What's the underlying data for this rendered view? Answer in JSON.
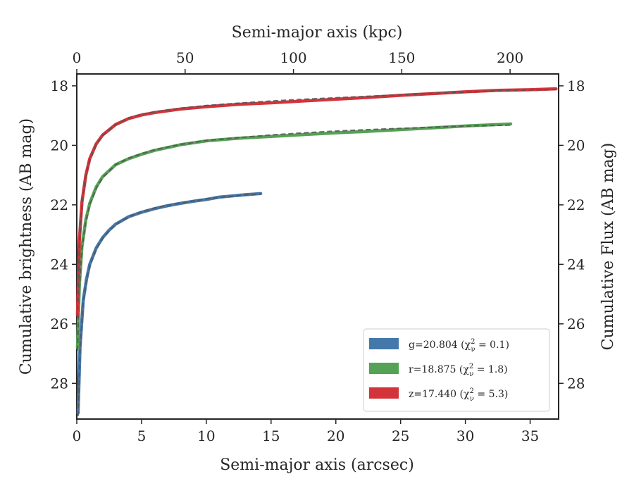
{
  "chart_data": {
    "type": "line",
    "title": "",
    "xlabel": "Semi-major axis (arcsec)",
    "ylabel": "Cumulative brightness (AB mag)",
    "x2label": "Semi-major axis (kpc)",
    "y2label": "Cumulative Flux (AB mag)",
    "xlim": [
      0,
      37.2
    ],
    "ylim": [
      29.2,
      17.6
    ],
    "y_inverted": true,
    "x2lim": [
      0,
      222.4
    ],
    "xticks": [
      "0",
      "5",
      "10",
      "15",
      "20",
      "25",
      "30",
      "35"
    ],
    "xtick_values": [
      0,
      5,
      10,
      15,
      20,
      25,
      30,
      35
    ],
    "x2ticks": [
      "0",
      "50",
      "100",
      "150",
      "200"
    ],
    "x2tick_values": [
      0,
      50,
      100,
      150,
      200
    ],
    "yticks": [
      "18",
      "20",
      "22",
      "24",
      "26",
      "28"
    ],
    "ytick_values": [
      18,
      20,
      22,
      24,
      26,
      28
    ],
    "grid": false,
    "legend_position": "lower-right",
    "legend": [
      {
        "label": "g=20.804 (χ",
        "sub": "ν",
        "sup": "2",
        "tail": " = 0.1)",
        "color": "#4477aa"
      },
      {
        "label": "r=18.875 (χ",
        "sub": "ν",
        "sup": "2",
        "tail": " = 1.8)",
        "color": "#55a155"
      },
      {
        "label": "z=17.440 (χ",
        "sub": "ν",
        "sup": "2",
        "tail": " = 5.3)",
        "color": "#d3343a"
      }
    ],
    "series": [
      {
        "name": "g=20.804",
        "color": "#4477aa",
        "x": [
          0.1,
          0.25,
          0.5,
          0.75,
          1.0,
          1.5,
          2.0,
          2.5,
          3.0,
          4.0,
          5.0,
          6.0,
          7.0,
          8.0,
          9.0,
          10.0,
          11.0,
          12.0,
          13.0,
          14.2
        ],
        "y": [
          29.0,
          26.8,
          25.2,
          24.5,
          24.0,
          23.45,
          23.1,
          22.85,
          22.65,
          22.4,
          22.25,
          22.13,
          22.03,
          21.95,
          21.88,
          21.82,
          21.74,
          21.7,
          21.66,
          21.62
        ],
        "model_y": [
          29.1,
          26.9,
          25.25,
          24.55,
          24.05,
          23.5,
          23.12,
          22.87,
          22.66,
          22.4,
          22.23,
          22.11,
          22.02,
          21.94,
          21.87,
          21.8,
          21.75,
          21.71,
          21.67,
          21.64
        ]
      },
      {
        "name": "r=18.875",
        "color": "#55a155",
        "x": [
          0.05,
          0.2,
          0.4,
          0.7,
          1.0,
          1.5,
          2.0,
          3.0,
          4.0,
          5.0,
          6.0,
          8.0,
          10.0,
          12.5,
          15.0,
          17.5,
          20.0,
          22.5,
          25.0,
          27.5,
          30.0,
          33.5
        ],
        "y": [
          26.8,
          24.7,
          23.4,
          22.5,
          21.95,
          21.4,
          21.05,
          20.65,
          20.45,
          20.3,
          20.17,
          19.98,
          19.85,
          19.76,
          19.7,
          19.64,
          19.58,
          19.53,
          19.47,
          19.41,
          19.35,
          19.28
        ],
        "model_y": [
          26.9,
          24.8,
          23.45,
          22.55,
          22.0,
          21.45,
          21.08,
          20.65,
          20.43,
          20.28,
          20.15,
          19.97,
          19.84,
          19.74,
          19.65,
          19.58,
          19.52,
          19.47,
          19.43,
          19.39,
          19.35,
          19.32
        ]
      },
      {
        "name": "z=17.440",
        "color": "#d3343a",
        "x": [
          0.05,
          0.2,
          0.4,
          0.7,
          1.0,
          1.5,
          2.0,
          3.0,
          4.0,
          5.0,
          6.0,
          8.0,
          10.0,
          12.5,
          15.0,
          17.5,
          20.0,
          22.5,
          25.0,
          27.5,
          30.0,
          32.5,
          35.0,
          37.0
        ],
        "y": [
          25.7,
          23.2,
          21.9,
          21.0,
          20.45,
          19.95,
          19.65,
          19.3,
          19.1,
          18.98,
          18.9,
          18.78,
          18.7,
          18.62,
          18.57,
          18.51,
          18.45,
          18.39,
          18.32,
          18.26,
          18.2,
          18.15,
          18.13,
          18.1
        ],
        "model_y": [
          25.8,
          23.3,
          21.95,
          21.05,
          20.5,
          19.98,
          19.67,
          19.3,
          19.08,
          18.95,
          18.87,
          18.75,
          18.66,
          18.58,
          18.51,
          18.45,
          18.4,
          18.35,
          18.3,
          18.25,
          18.21,
          18.17,
          18.14,
          18.12
        ]
      }
    ]
  }
}
